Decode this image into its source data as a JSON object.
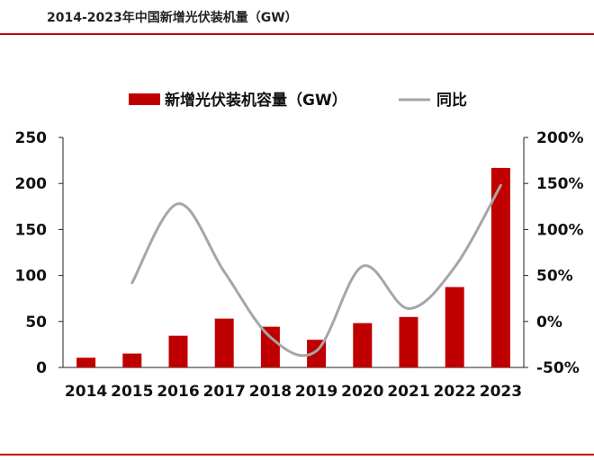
{
  "header": {
    "title": "2014-2023年中国新增光伏装机量（GW）"
  },
  "colors": {
    "accent": "#c00000",
    "bar": "#c00000",
    "line": "#a6a6a6",
    "axis": "#222222"
  },
  "chart_data": {
    "type": "bar",
    "categories": [
      "2014",
      "2015",
      "2016",
      "2017",
      "2018",
      "2019",
      "2020",
      "2021",
      "2022",
      "2023"
    ],
    "series": [
      {
        "name": "新增光伏装机容量（GW）",
        "type": "bar",
        "axis": "left",
        "values": [
          10.6,
          15.1,
          34.5,
          53.1,
          44.3,
          30.1,
          48.2,
          54.9,
          87.4,
          216.9
        ]
      },
      {
        "name": "同比",
        "type": "line",
        "axis": "right",
        "values": [
          null,
          42,
          128,
          54,
          -17,
          -32,
          60,
          14,
          59,
          148
        ]
      }
    ],
    "title": "2014-2023年中国新增光伏装机量（GW）",
    "ylim": [
      0,
      250
    ],
    "yticks": [
      "0",
      "50",
      "100",
      "150",
      "200",
      "250"
    ],
    "y2lim": [
      -50,
      200
    ],
    "y2ticks": [
      "-50%",
      "0%",
      "50%",
      "100%",
      "150%",
      "200%"
    ],
    "grid": false,
    "legend": "top"
  }
}
